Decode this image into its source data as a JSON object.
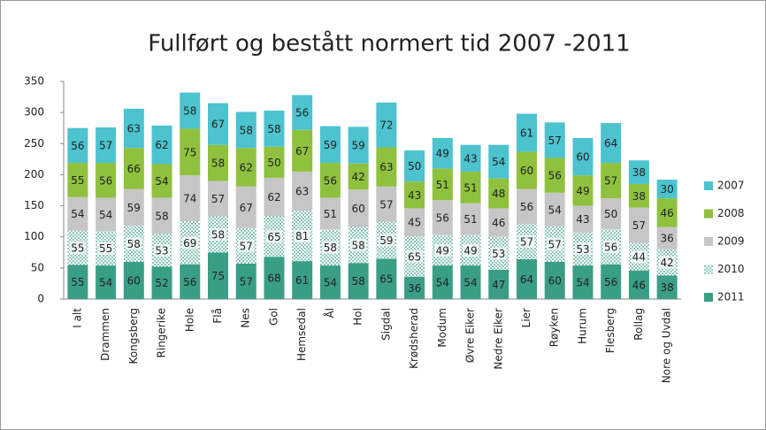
{
  "chart_data": {
    "type": "stacked_bar",
    "title": "Fullført og bestått normert tid 2007 -2011",
    "categories": [
      "I alt",
      "Drammen",
      "Kongsberg",
      "Ringerike",
      "Hole",
      "Flå",
      "Nes",
      "Gol",
      "Hemsedal",
      "Ål",
      "Hol",
      "Sigdal",
      "Krødsherad",
      "Modum",
      "Øvre Eiker",
      "Nedre Eiker",
      "Lier",
      "Røyken",
      "Hurum",
      "Flesberg",
      "Rollag",
      "Nore og Uvdal"
    ],
    "series": [
      {
        "name": "2011",
        "color": "#3a9e87",
        "values": [
          55,
          54,
          60,
          52,
          56,
          75,
          57,
          68,
          61,
          54,
          58,
          65,
          36,
          54,
          54,
          47,
          64,
          60,
          54,
          56,
          46,
          38
        ]
      },
      {
        "name": "2010",
        "color": "#3a9e87",
        "pattern": "dotted",
        "values": [
          55,
          55,
          58,
          53,
          69,
          58,
          57,
          65,
          81,
          58,
          58,
          59,
          65,
          49,
          49,
          53,
          57,
          57,
          53,
          56,
          44,
          42
        ]
      },
      {
        "name": "2009",
        "color": "#c6c6c6",
        "values": [
          54,
          54,
          59,
          58,
          74,
          57,
          67,
          62,
          63,
          51,
          60,
          57,
          45,
          56,
          51,
          46,
          56,
          54,
          43,
          50,
          57,
          36
        ]
      },
      {
        "name": "2008",
        "color": "#8fc13e",
        "values": [
          55,
          56,
          66,
          54,
          75,
          58,
          62,
          50,
          67,
          56,
          42,
          63,
          43,
          51,
          51,
          48,
          60,
          56,
          49,
          57,
          38,
          46
        ]
      },
      {
        "name": "2007",
        "color": "#4cc3cf",
        "values": [
          56,
          57,
          63,
          62,
          58,
          67,
          58,
          58,
          56,
          59,
          59,
          72,
          50,
          49,
          43,
          54,
          61,
          57,
          60,
          64,
          38,
          30
        ]
      }
    ],
    "ylim": [
      0,
      350
    ],
    "yticks": [
      0,
      50,
      100,
      150,
      200,
      250,
      300,
      350
    ],
    "grid": false,
    "legend": "right"
  }
}
